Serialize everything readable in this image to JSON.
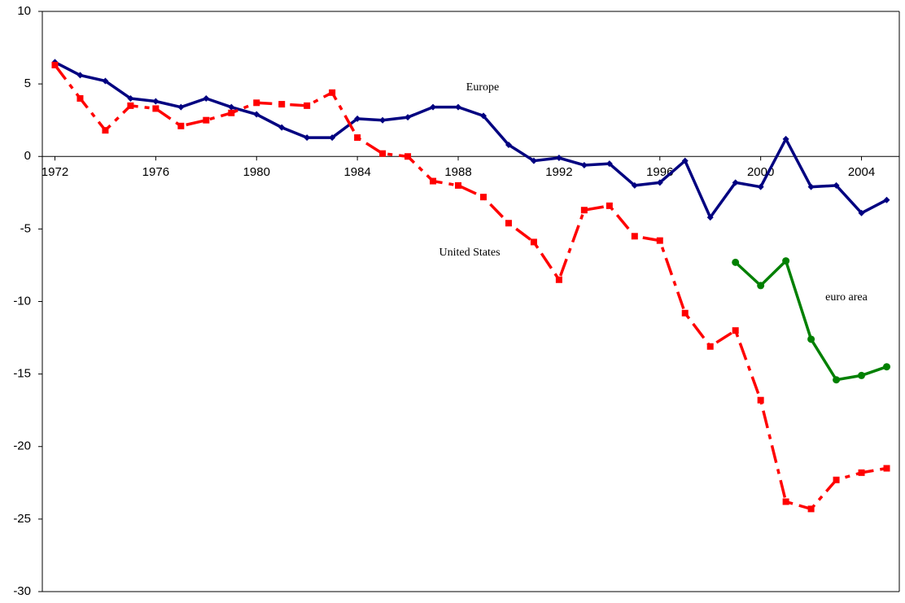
{
  "chart_data": {
    "type": "line",
    "x": [
      1972,
      1973,
      1974,
      1975,
      1976,
      1977,
      1978,
      1979,
      1980,
      1981,
      1982,
      1983,
      1984,
      1985,
      1986,
      1987,
      1988,
      1989,
      1990,
      1991,
      1992,
      1993,
      1994,
      1995,
      1996,
      1997,
      1998,
      1999,
      2000,
      2001,
      2002,
      2003,
      2004,
      2005
    ],
    "xlim": [
      1971.5,
      2005.5
    ],
    "xticks": [
      1972,
      1976,
      1980,
      1984,
      1988,
      1992,
      1996,
      2000,
      2004
    ],
    "ylim": [
      -30,
      10
    ],
    "yticks": [
      -30,
      -25,
      -20,
      -15,
      -10,
      -5,
      0,
      5,
      10
    ],
    "series": [
      {
        "name": "Europe",
        "color": "#000080",
        "marker": "diamond",
        "dash": false,
        "values": [
          6.5,
          5.6,
          5.2,
          4.0,
          3.8,
          3.4,
          4.0,
          3.4,
          2.9,
          2.0,
          1.3,
          1.3,
          2.6,
          2.5,
          2.7,
          3.4,
          3.4,
          2.8,
          0.8,
          -0.3,
          -0.1,
          -0.6,
          -0.5,
          -2.0,
          -1.8,
          -0.3,
          -4.2,
          -1.8,
          -2.1,
          1.2,
          -2.1,
          -2.0,
          -3.9,
          -3.0
        ]
      },
      {
        "name": "United States",
        "color": "#ff0000",
        "marker": "square",
        "dash": true,
        "values": [
          6.3,
          4.0,
          1.8,
          3.5,
          3.3,
          2.1,
          2.5,
          3.0,
          3.7,
          3.6,
          3.5,
          4.4,
          1.3,
          0.2,
          0.0,
          -1.7,
          -2.0,
          -2.8,
          -4.6,
          -5.9,
          -8.5,
          -3.7,
          -3.4,
          -5.5,
          -5.8,
          -10.8,
          -13.1,
          -12.0,
          -16.8,
          -23.8,
          -24.3,
          -22.3,
          -21.8,
          -21.5
        ]
      },
      {
        "name": "euro area",
        "color": "#008000",
        "marker": "circle",
        "dash": false,
        "values": [
          null,
          null,
          null,
          null,
          null,
          null,
          null,
          null,
          null,
          null,
          null,
          null,
          null,
          null,
          null,
          null,
          null,
          null,
          null,
          null,
          null,
          null,
          null,
          null,
          null,
          null,
          null,
          -7.3,
          -8.9,
          -7.2,
          -12.6,
          -15.4,
          -15.1,
          -14.5
        ]
      }
    ]
  }
}
